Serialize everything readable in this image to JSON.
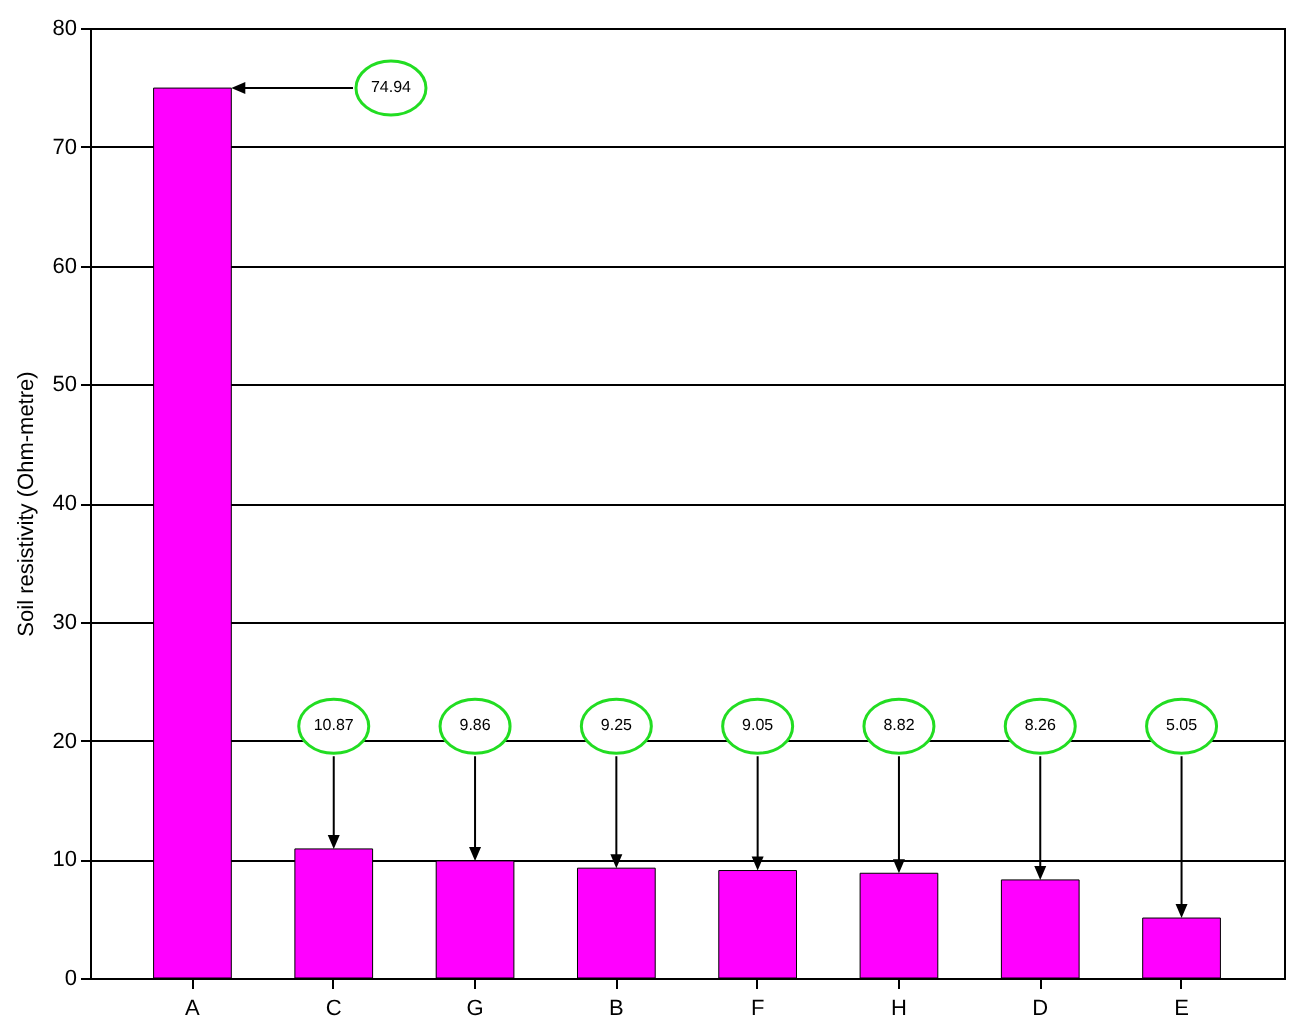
{
  "chart_data": {
    "type": "bar",
    "ylabel": "Soil resistivity (Ohm-metre)",
    "categories": [
      "A",
      "C",
      "G",
      "B",
      "F",
      "H",
      "D",
      "E"
    ],
    "values": [
      74.94,
      10.87,
      9.86,
      9.25,
      9.05,
      8.82,
      8.26,
      5.05
    ],
    "color": "#ff00ff",
    "ylim": [
      0,
      80
    ],
    "yticks": [
      0,
      10,
      20,
      30,
      40,
      50,
      60,
      70,
      80
    ],
    "grid": "y",
    "annotations": [
      "74.94",
      "10.87",
      "9.86",
      "9.25",
      "9.05",
      "8.82",
      "8.26",
      "5.05"
    ]
  }
}
